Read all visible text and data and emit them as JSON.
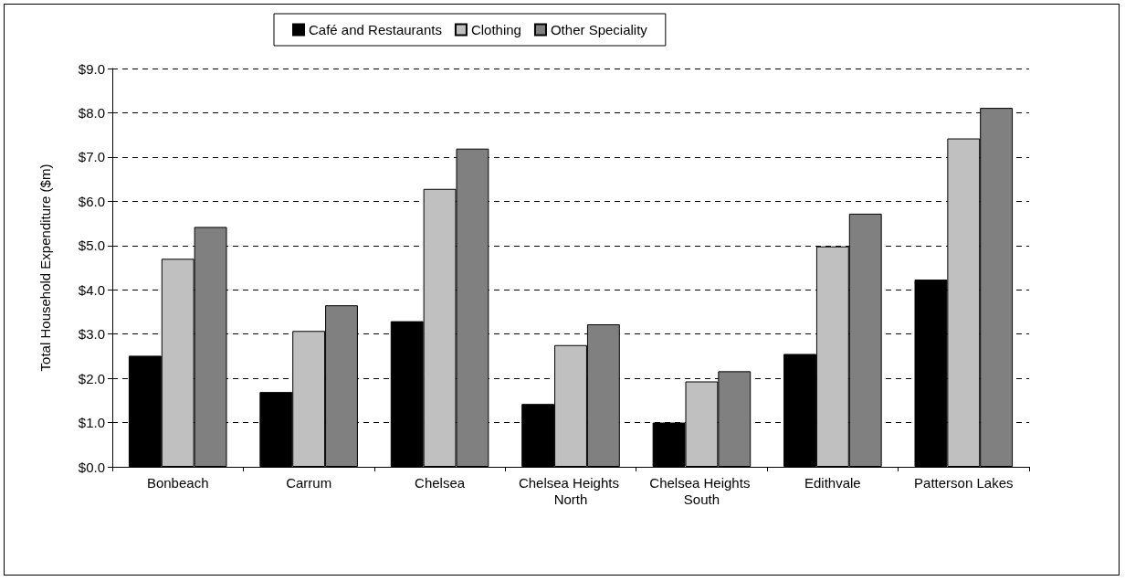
{
  "chart_data": {
    "type": "bar",
    "ylabel": "Total Household Expenditure ($m)",
    "categories": [
      "Bonbeach",
      "Carrum",
      "Chelsea",
      "Chelsea Heights North",
      "Chelsea Heights South",
      "Edithvale",
      "Patterson Lakes"
    ],
    "series": [
      {
        "name": "Café and Restaurants",
        "color": "#000000",
        "values": [
          2.51,
          1.69,
          3.29,
          1.42,
          1.0,
          2.55,
          4.23
        ]
      },
      {
        "name": "Clothing",
        "color": "#c0c0c0",
        "values": [
          4.7,
          3.07,
          6.28,
          2.75,
          1.93,
          4.98,
          7.42
        ]
      },
      {
        "name": "Other Speciality",
        "color": "#808080",
        "values": [
          5.42,
          3.65,
          7.19,
          3.22,
          2.16,
          5.72,
          8.11
        ]
      }
    ],
    "ylim": [
      0,
      9
    ],
    "yticks": [
      {
        "value": 0,
        "label": "$0.0"
      },
      {
        "value": 1,
        "label": "$1.0"
      },
      {
        "value": 2,
        "label": "$2.0"
      },
      {
        "value": 3,
        "label": "$3.0"
      },
      {
        "value": 4,
        "label": "$4.0"
      },
      {
        "value": 5,
        "label": "$5.0"
      },
      {
        "value": 6,
        "label": "$6.0"
      },
      {
        "value": 7,
        "label": "$7.0"
      },
      {
        "value": 8,
        "label": "$8.0"
      },
      {
        "value": 9,
        "label": "$9.0"
      }
    ],
    "grid": "y",
    "legend": "top"
  }
}
